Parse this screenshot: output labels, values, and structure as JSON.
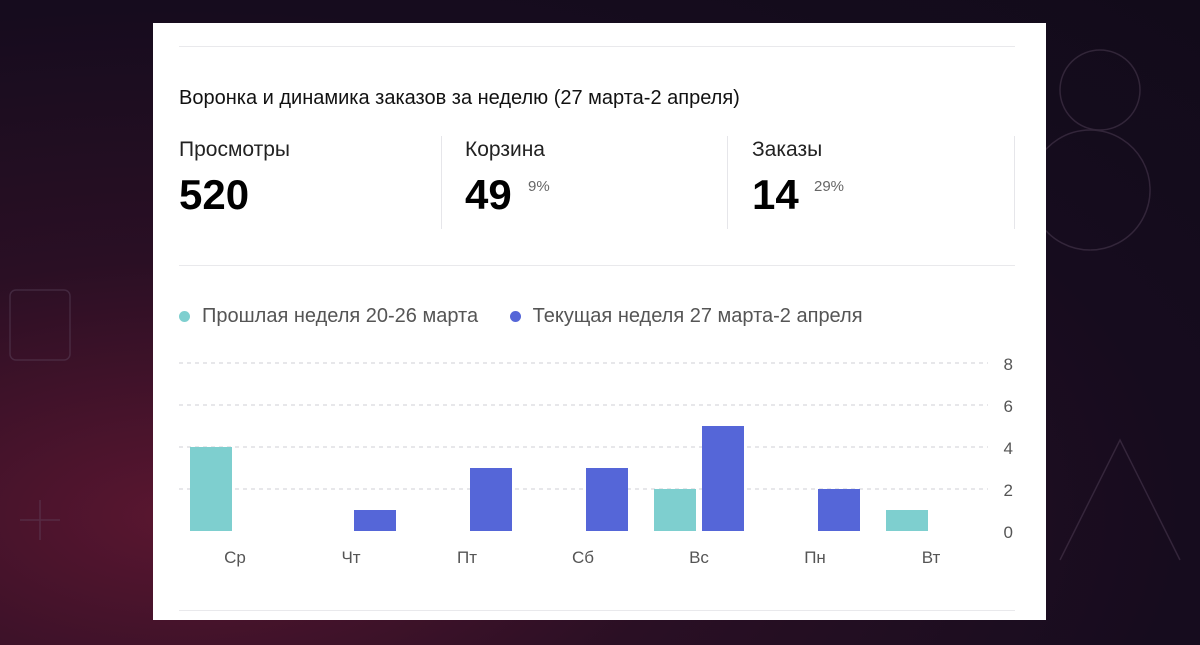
{
  "card": {
    "title": "Воронка и динамика заказов за неделю (27 марта-2 апреля)",
    "stats": [
      {
        "label": "Просмотры",
        "value": "520",
        "pct": ""
      },
      {
        "label": "Корзина",
        "value": "49",
        "pct": "9%"
      },
      {
        "label": "Заказы",
        "value": "14",
        "pct": "29%"
      }
    ]
  },
  "colors": {
    "previous": "#7ecfcf",
    "current": "#5566d8"
  },
  "chart_data": {
    "type": "bar",
    "categories": [
      "Ср",
      "Чт",
      "Пт",
      "Сб",
      "Вс",
      "Пн",
      "Вт"
    ],
    "series": [
      {
        "name": "Прошлая неделя 20-26 марта",
        "values": [
          4,
          0,
          0,
          0,
          2,
          0,
          1
        ]
      },
      {
        "name": "Текущая неделя 27 марта-2 апреля",
        "values": [
          0,
          1,
          3,
          3,
          5,
          2,
          0
        ]
      }
    ],
    "yticks": [
      "0",
      "2",
      "4",
      "6",
      "8"
    ],
    "ylim": [
      0,
      8
    ],
    "grid": true,
    "legend": "top-left",
    "xlabel": "",
    "ylabel": ""
  }
}
